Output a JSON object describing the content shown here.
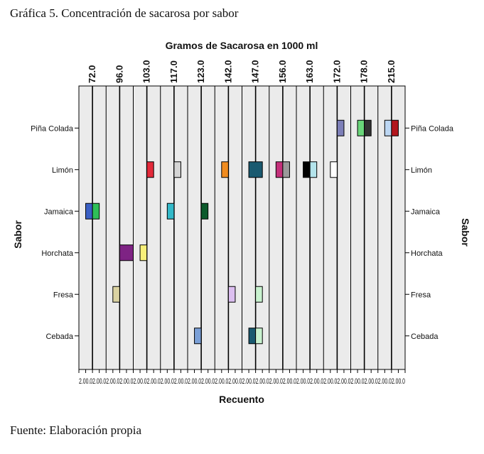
{
  "caption_top": "Gráfica 5. Concentración de sacarosa por sabor",
  "caption_bottom": "Fuente: Elaboración propia",
  "chart_data": {
    "type": "bar",
    "title": "Gramos de Sacarosa en 1000 ml",
    "xlabel": "Recuento",
    "ylabel": "Sabor",
    "ylabel_right": "Sabor",
    "panels": [
      "72.0",
      "96.0",
      "103.0",
      "117.0",
      "123.0",
      "142.0",
      "147.0",
      "156.0",
      "163.0",
      "172.0",
      "178.0",
      "215.0"
    ],
    "categories": [
      "Piña Colada",
      "Limón",
      "Jamaica",
      "Horchata",
      "Fresa",
      "Cebada"
    ],
    "x_ticks": [
      "2.0",
      "0.0",
      "2.0",
      "0.0",
      "2.0",
      "0.0",
      "2.0",
      "0.0",
      "2.0",
      "0.0",
      "2.0",
      "0.0",
      "2.0",
      "0.0",
      "2.0",
      "0.0",
      "2.0",
      "0.0",
      "2.0",
      "0.0",
      "2.0",
      "0.0",
      "2.0",
      "0.0",
      "2.0",
      "0.0",
      "2.0",
      "0.0",
      "2.0",
      "0.0",
      "2.0",
      "0.0",
      "2.0",
      "0.0",
      "2.0",
      "0.0",
      "2.0",
      "0.0",
      "2.0",
      "0.0",
      "2.0",
      "0.0",
      "2.0",
      "0.0",
      "2.0",
      "0.0",
      "2.0",
      "0.0"
    ],
    "bars": [
      {
        "panel": "72.0",
        "category": "Jamaica",
        "side": -1,
        "value": 1,
        "color": "#3a5fc4"
      },
      {
        "panel": "72.0",
        "category": "Jamaica",
        "side": 1,
        "value": 1,
        "color": "#2fbf58"
      },
      {
        "panel": "96.0",
        "category": "Fresa",
        "side": -1,
        "value": 1,
        "color": "#dbd3a2"
      },
      {
        "panel": "96.0",
        "category": "Horchata",
        "side": 1,
        "value": 2,
        "color": "#7e2384"
      },
      {
        "panel": "103.0",
        "category": "Horchata",
        "side": -1,
        "value": 1,
        "color": "#f8f07a"
      },
      {
        "panel": "103.0",
        "category": "Limón",
        "side": 1,
        "value": 1,
        "color": "#e32a3a"
      },
      {
        "panel": "117.0",
        "category": "Limón",
        "side": 1,
        "value": 1,
        "color": "#d5d5d5"
      },
      {
        "panel": "117.0",
        "category": "Jamaica",
        "side": -1,
        "value": 1,
        "color": "#33b9c9"
      },
      {
        "panel": "123.0",
        "category": "Jamaica",
        "side": 1,
        "value": 1,
        "color": "#0c5a2c"
      },
      {
        "panel": "123.0",
        "category": "Cebada",
        "side": -1,
        "value": 1,
        "color": "#7a9fd6"
      },
      {
        "panel": "142.0",
        "category": "Limón",
        "side": -1,
        "value": 1,
        "color": "#f08c20"
      },
      {
        "panel": "142.0",
        "category": "Fresa",
        "side": 1,
        "value": 1,
        "color": "#dcbff0"
      },
      {
        "panel": "147.0",
        "category": "Limón",
        "side": 0,
        "value": 2,
        "color": "#1a5a70"
      },
      {
        "panel": "147.0",
        "category": "Fresa",
        "side": 1,
        "value": 1,
        "color": "#c9f2cf"
      },
      {
        "panel": "147.0",
        "category": "Cebada",
        "side": -1,
        "value": 1,
        "color": "#1a5a70"
      },
      {
        "panel": "147.0",
        "category": "Cebada",
        "side": 1,
        "value": 1,
        "color": "#c9f2cf"
      },
      {
        "panel": "156.0",
        "category": "Limón",
        "side": -1,
        "value": 1,
        "color": "#c4307a"
      },
      {
        "panel": "156.0",
        "category": "Limón",
        "side": 1,
        "value": 1,
        "color": "#9a9a9a"
      },
      {
        "panel": "163.0",
        "category": "Limón",
        "side": -1,
        "value": 1,
        "color": "#000000"
      },
      {
        "panel": "163.0",
        "category": "Limón",
        "side": 1,
        "value": 1,
        "color": "#b4e4ec"
      },
      {
        "panel": "172.0",
        "category": "Limón",
        "side": -1,
        "value": 1,
        "color": "#ffffff"
      },
      {
        "panel": "172.0",
        "category": "Piña Colada",
        "side": 1,
        "value": 1,
        "color": "#7d7fb8"
      },
      {
        "panel": "178.0",
        "category": "Piña Colada",
        "side": -1,
        "value": 1,
        "color": "#6ad67a"
      },
      {
        "panel": "178.0",
        "category": "Piña Colada",
        "side": 1,
        "value": 1,
        "color": "#333333"
      },
      {
        "panel": "215.0",
        "category": "Piña Colada",
        "side": -1,
        "value": 1,
        "color": "#bcd6f2"
      },
      {
        "panel": "215.0",
        "category": "Piña Colada",
        "side": 1,
        "value": 1,
        "color": "#b2161d"
      }
    ]
  }
}
